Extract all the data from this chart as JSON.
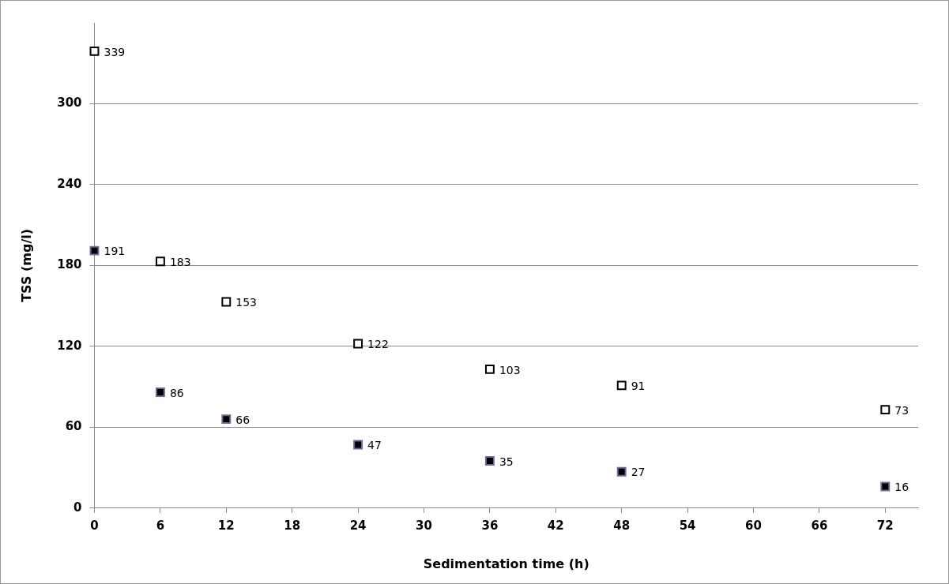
{
  "chart_data": {
    "type": "scatter",
    "xlabel": "Sedimentation time (h)",
    "ylabel": "TSS (mg/l)",
    "x": [
      0,
      6,
      12,
      24,
      36,
      48,
      72
    ],
    "series": [
      {
        "color": "#ffffff",
        "values": [
          339,
          183,
          153,
          122,
          103,
          91,
          73
        ]
      },
      {
        "color": "#000000",
        "values": [
          191,
          86,
          66,
          47,
          35,
          27,
          16
        ]
      }
    ],
    "xlim": [
      0,
      75
    ],
    "xticks": [
      0,
      6,
      12,
      18,
      24,
      30,
      36,
      42,
      48,
      54,
      60,
      66,
      72
    ],
    "ylim": [
      0,
      360
    ],
    "yticks": [
      0,
      60,
      120,
      180,
      240,
      300
    ],
    "grid": "y",
    "legend": false,
    "marker": "square",
    "data_labels": true
  }
}
